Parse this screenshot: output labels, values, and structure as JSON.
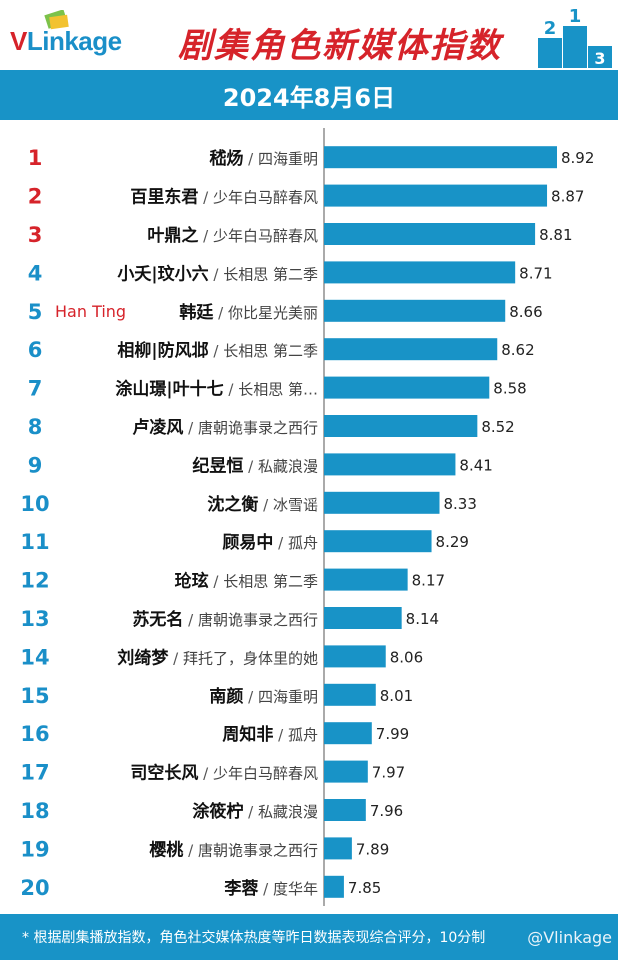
{
  "brand": {
    "logo_text_v": "V",
    "logo_text_rest": "Linkage",
    "watermark": "@Vlinkage"
  },
  "header": {
    "title": "剧集角色新媒体指数",
    "podium_digits": [
      "2",
      "1",
      "3"
    ]
  },
  "date": "2024年8月6日",
  "annotation": "Han Ting",
  "footer_note": "* 根据剧集播放指数，角色社交媒体热度等昨日数据表现综合评分，10分制",
  "colors": {
    "bar": "#1893c7",
    "rank_top": "#d6232a",
    "rank_rest": "#1a8fc8",
    "band": "#1893c7",
    "annotation": "#d6232a"
  },
  "chart_data": {
    "type": "bar",
    "orientation": "horizontal",
    "categories": [
      {
        "rank": "1",
        "name": "嵇炀",
        "show": "四海重明"
      },
      {
        "rank": "2",
        "name": "百里东君",
        "show": "少年白马醉春风"
      },
      {
        "rank": "3",
        "name": "叶鼎之",
        "show": "少年白马醉春风"
      },
      {
        "rank": "4",
        "name": "小夭|玟小六",
        "show": "长相思 第二季"
      },
      {
        "rank": "5",
        "name": "韩廷",
        "show": "你比星光美丽"
      },
      {
        "rank": "6",
        "name": "相柳|防风邶",
        "show": "长相思 第二季"
      },
      {
        "rank": "7",
        "name": "涂山璟|叶十七",
        "show": "长相思 第…"
      },
      {
        "rank": "8",
        "name": "卢凌风",
        "show": "唐朝诡事录之西行"
      },
      {
        "rank": "9",
        "name": "纪昱恒",
        "show": "私藏浪漫"
      },
      {
        "rank": "10",
        "name": "沈之衡",
        "show": "冰雪谣"
      },
      {
        "rank": "11",
        "name": "顾易中",
        "show": "孤舟"
      },
      {
        "rank": "12",
        "name": "玱玹",
        "show": "长相思 第二季"
      },
      {
        "rank": "13",
        "name": "苏无名",
        "show": "唐朝诡事录之西行"
      },
      {
        "rank": "14",
        "name": "刘绮梦",
        "show": "拜托了，身体里的她"
      },
      {
        "rank": "15",
        "name": "南颜",
        "show": "四海重明"
      },
      {
        "rank": "16",
        "name": "周知非",
        "show": "孤舟"
      },
      {
        "rank": "17",
        "name": "司空长风",
        "show": "少年白马醉春风"
      },
      {
        "rank": "18",
        "name": "涂筱柠",
        "show": "私藏浪漫"
      },
      {
        "rank": "19",
        "name": "樱桃",
        "show": "唐朝诡事录之西行"
      },
      {
        "rank": "20",
        "name": "李蓉",
        "show": "度华年"
      }
    ],
    "values": [
      8.92,
      8.87,
      8.81,
      8.71,
      8.66,
      8.62,
      8.58,
      8.52,
      8.41,
      8.33,
      8.29,
      8.17,
      8.14,
      8.06,
      8.01,
      7.99,
      7.97,
      7.96,
      7.89,
      7.85
    ],
    "value_labels": [
      "8.92",
      "8.87",
      "8.81",
      "8.71",
      "8.66",
      "8.62",
      "8.58",
      "8.52",
      "8.41",
      "8.33",
      "8.29",
      "8.17",
      "8.14",
      "8.06",
      "8.01",
      "7.99",
      "7.97",
      "7.96",
      "7.89",
      "7.85"
    ],
    "xlim": [
      7.75,
      8.92
    ],
    "grid": false,
    "legend": "none"
  }
}
